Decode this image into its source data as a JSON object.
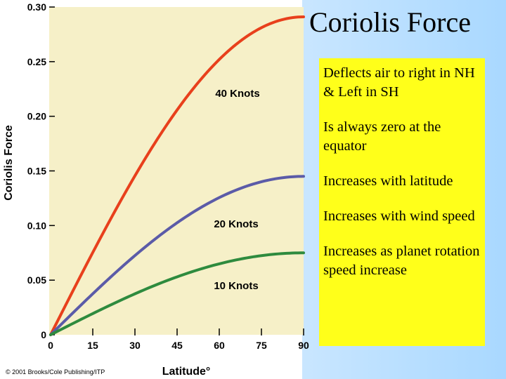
{
  "slide": {
    "title": "Coriolis Force",
    "bullets": [
      "Deflects air to right in NH\n& Left in SH",
      "Is always zero at the equator",
      "Increases with latitude",
      "Increases with wind speed",
      "Increases as planet rotation speed increase"
    ]
  },
  "chart_data": {
    "type": "line",
    "xlabel": "Latitude°",
    "ylabel": "Coriolis Force",
    "xlim": [
      0,
      90
    ],
    "ylim": [
      0,
      0.3
    ],
    "x_ticks": [
      "0",
      "15",
      "30",
      "45",
      "60",
      "75",
      "90"
    ],
    "y_ticks": [
      "0",
      "0.05",
      "0.10",
      "0.15",
      "0.20",
      "0.25",
      "0.30"
    ],
    "x": [
      0,
      15,
      30,
      45,
      60,
      75,
      90
    ],
    "series": [
      {
        "name": "40 Knots",
        "color": "#e8401c",
        "values": [
          0,
          0.075,
          0.145,
          0.205,
          0.251,
          0.281,
          0.291
        ]
      },
      {
        "name": "20 Knots",
        "color": "#5b5ba8",
        "values": [
          0,
          0.038,
          0.073,
          0.103,
          0.126,
          0.14,
          0.145
        ]
      },
      {
        "name": "10 Knots",
        "color": "#2e8b3e",
        "values": [
          0,
          0.019,
          0.036,
          0.051,
          0.063,
          0.07,
          0.075
        ]
      }
    ],
    "plot_background": "#f6f0c8",
    "copyright": "© 2001 Brooks/Cole Publishing/ITP"
  }
}
